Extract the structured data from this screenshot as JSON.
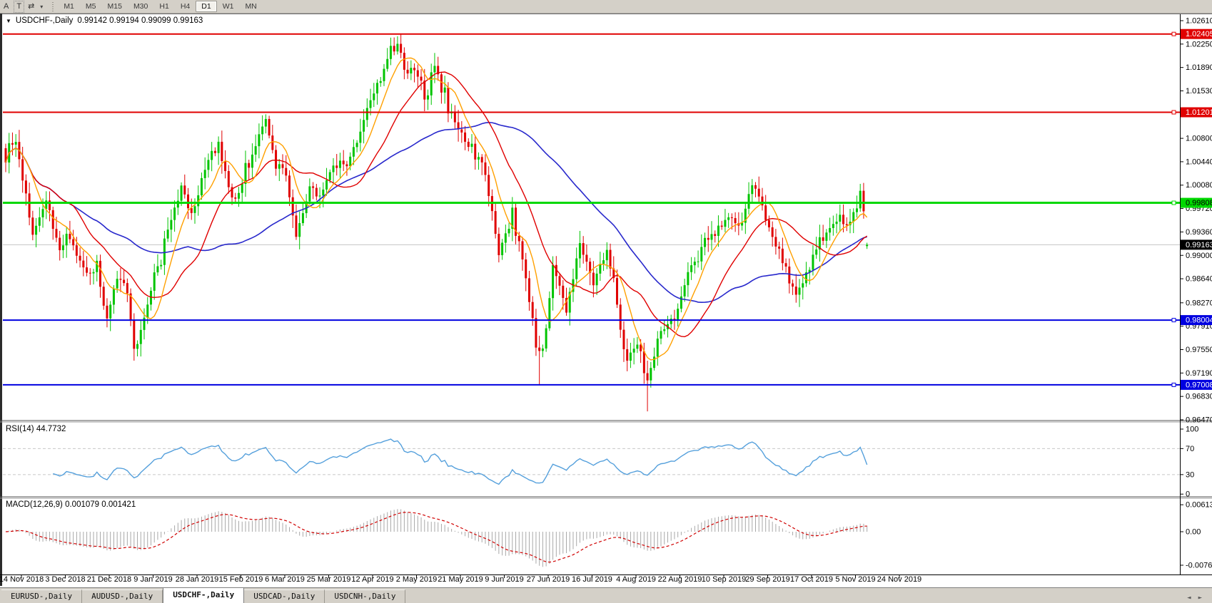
{
  "toolbar": {
    "tools": [
      {
        "name": "arrow-text-tool-icon",
        "glyph": "A"
      },
      {
        "name": "text-label-tool-icon",
        "glyph": "T",
        "boxed": true
      },
      {
        "name": "crosshair-tool-icon",
        "glyph": "⇄"
      },
      {
        "name": "dropdown-caret-icon",
        "glyph": "▾"
      }
    ],
    "timeframes": [
      {
        "label": "M1"
      },
      {
        "label": "M5"
      },
      {
        "label": "M15"
      },
      {
        "label": "M30"
      },
      {
        "label": "H1"
      },
      {
        "label": "H4"
      },
      {
        "label": "D1",
        "active": true
      },
      {
        "label": "W1"
      },
      {
        "label": "MN"
      }
    ]
  },
  "chart_header": {
    "collapse_glyph": "▼",
    "symbol": "USDCHF-,Daily",
    "ohlc": "0.99142 0.99194 0.99099 0.99163"
  },
  "indicators": {
    "rsi_label": "RSI(14) 44.7732",
    "macd_label": "MACD(12,26,9) 0.001079 0.001421"
  },
  "tabs": {
    "items": [
      {
        "label": "EURUSD-,Daily"
      },
      {
        "label": "AUDUSD-,Daily"
      },
      {
        "label": "USDCHF-,Daily",
        "active": true
      },
      {
        "label": "USDCAD-,Daily"
      },
      {
        "label": "USDCNH-,Daily"
      }
    ],
    "scroll_left_glyph": "◄",
    "scroll_right_glyph": "►"
  },
  "chart_data": [
    {
      "type": "candlestick",
      "title": "USDCHF-,Daily",
      "ohlc_current": {
        "open": 0.99142,
        "high": 0.99194,
        "low": 0.99099,
        "close": 0.99163
      },
      "x_labels": [
        "14 Nov 2018",
        "3 Dec 2018",
        "21 Dec 2018",
        "9 Jan 2019",
        "28 Jan 2019",
        "15 Feb 2019",
        "6 Mar 2019",
        "25 Mar 2019",
        "12 Apr 2019",
        "2 May 2019",
        "21 May 2019",
        "9 Jun 2019",
        "27 Jun 2019",
        "16 Jul 2019",
        "4 Aug 2019",
        "22 Aug 2019",
        "10 Sep 2019",
        "29 Sep 2019",
        "17 Oct 2019",
        "5 Nov 2019",
        "24 Nov 2019"
      ],
      "y_ticks": [
        "1.02610",
        "1.02250",
        "1.01890",
        "1.01530",
        "1.01170",
        "1.00800",
        "1.00440",
        "1.00080",
        "0.99720",
        "0.99360",
        "0.99000",
        "0.98640",
        "0.98270",
        "0.97910",
        "0.97550",
        "0.97190",
        "0.96830",
        "0.96470"
      ],
      "ylim": [
        0.9647,
        1.0261
      ],
      "bars_visible": 256,
      "hlines": [
        {
          "price": 1.02405,
          "label": "1.02405",
          "color": "#e00000",
          "label_text_color": "#ffffff",
          "width": 2
        },
        {
          "price": 1.01201,
          "label": "1.01201",
          "color": "#e00000",
          "label_text_color": "#ffffff",
          "width": 2
        },
        {
          "price": 0.99808,
          "label": "0.99808",
          "color": "#00d800",
          "label_text_color": "#000000",
          "width": 3
        },
        {
          "price": 0.98004,
          "label": "0.98004",
          "color": "#0000e0",
          "label_text_color": "#ffffff",
          "width": 2
        },
        {
          "price": 0.97008,
          "label": "0.97008",
          "color": "#0000e0",
          "label_text_color": "#ffffff",
          "width": 2
        }
      ],
      "current_price": {
        "value": 0.99163,
        "label": "0.99163",
        "line_color": "#c4c4c4",
        "label_bg": "#000000",
        "label_text_color": "#ffffff"
      },
      "colors": {
        "up": "#00c400",
        "down": "#e00000",
        "ma_fast": "#ffa000",
        "ma_mid": "#e00000",
        "ma_slow": "#2828cc"
      },
      "ma_periods": {
        "fast": 8,
        "mid": 21,
        "slow": 55
      },
      "close_anchors": [
        [
          0,
          1.006
        ],
        [
          3,
          1.0075
        ],
        [
          8,
          0.9935
        ],
        [
          12,
          0.999
        ],
        [
          16,
          0.9905
        ],
        [
          19,
          0.993
        ],
        [
          24,
          0.987
        ],
        [
          27,
          0.9885
        ],
        [
          30,
          0.98
        ],
        [
          33,
          0.987
        ],
        [
          36,
          0.984
        ],
        [
          38,
          0.9745
        ],
        [
          41,
          0.98
        ],
        [
          44,
          0.987
        ],
        [
          48,
          0.9935
        ],
        [
          52,
          1.0005
        ],
        [
          55,
          0.9965
        ],
        [
          60,
          1.0045
        ],
        [
          63,
          1.007
        ],
        [
          67,
          0.999
        ],
        [
          71,
          1.0025
        ],
        [
          74,
          1.007
        ],
        [
          77,
          1.0105
        ],
        [
          80,
          1.004
        ],
        [
          83,
          1.0025
        ],
        [
          86,
          0.993
        ],
        [
          90,
          1.0005
        ],
        [
          93,
          0.9985
        ],
        [
          97,
          1.004
        ],
        [
          102,
          1.0045
        ],
        [
          106,
          1.011
        ],
        [
          110,
          1.016
        ],
        [
          114,
          1.0215
        ],
        [
          116,
          1.0225
        ],
        [
          118,
          1.0185
        ],
        [
          121,
          1.018
        ],
        [
          124,
          1.0145
        ],
        [
          127,
          1.019
        ],
        [
          131,
          1.0125
        ],
        [
          134,
          1.01
        ],
        [
          138,
          1.006
        ],
        [
          142,
          1.003
        ],
        [
          146,
          0.99
        ],
        [
          150,
          0.996
        ],
        [
          154,
          0.987
        ],
        [
          157,
          0.9765
        ],
        [
          159,
          0.975
        ],
        [
          162,
          0.988
        ],
        [
          166,
          0.9815
        ],
        [
          170,
          0.992
        ],
        [
          174,
          0.986
        ],
        [
          178,
          0.9905
        ],
        [
          181,
          0.982
        ],
        [
          184,
          0.973
        ],
        [
          187,
          0.977
        ],
        [
          190,
          0.9705
        ],
        [
          194,
          0.979
        ],
        [
          198,
          0.98
        ],
        [
          202,
          0.987
        ],
        [
          206,
          0.9905
        ],
        [
          210,
          0.9935
        ],
        [
          214,
          0.9965
        ],
        [
          218,
          0.995
        ],
        [
          221,
          1.001
        ],
        [
          224,
          0.9975
        ],
        [
          228,
          0.992
        ],
        [
          231,
          0.987
        ],
        [
          234,
          0.9845
        ],
        [
          238,
          0.9885
        ],
        [
          241,
          0.992
        ],
        [
          244,
          0.9935
        ],
        [
          247,
          0.9965
        ],
        [
          249,
          0.9945
        ],
        [
          251,
          0.996
        ],
        [
          253,
          1.0
        ],
        [
          254,
          0.9975
        ],
        [
          255,
          0.99163
        ]
      ],
      "low_spikes": [
        [
          38,
          0.9738
        ],
        [
          158,
          0.97
        ],
        [
          190,
          0.966
        ]
      ],
      "high_spikes": [
        [
          77,
          1.0117
        ],
        [
          116,
          1.0237
        ],
        [
          253,
          1.001
        ]
      ],
      "noise_seed": 7
    },
    {
      "type": "line",
      "name": "RSI",
      "label": "RSI(14) 44.7732",
      "period": 14,
      "last_value": 44.7732,
      "levels": [
        "100",
        "70",
        "30",
        "0"
      ],
      "level_values": [
        100,
        70,
        30,
        0
      ],
      "dashed_levels": [
        70,
        30
      ],
      "color": "#55a0dc"
    },
    {
      "type": "macd",
      "name": "MACD",
      "label": "MACD(12,26,9) 0.001079 0.001421",
      "params": [
        12,
        26,
        9
      ],
      "current": {
        "macd": 0.001079,
        "signal": 0.001421
      },
      "y_ticks": [
        "0.00613",
        "0.00",
        "-0.00761"
      ],
      "y_tick_values": [
        0.00613,
        0.0,
        -0.00761
      ],
      "colors": {
        "histogram": "#a8a8a8",
        "signal": "#d00000"
      }
    }
  ]
}
